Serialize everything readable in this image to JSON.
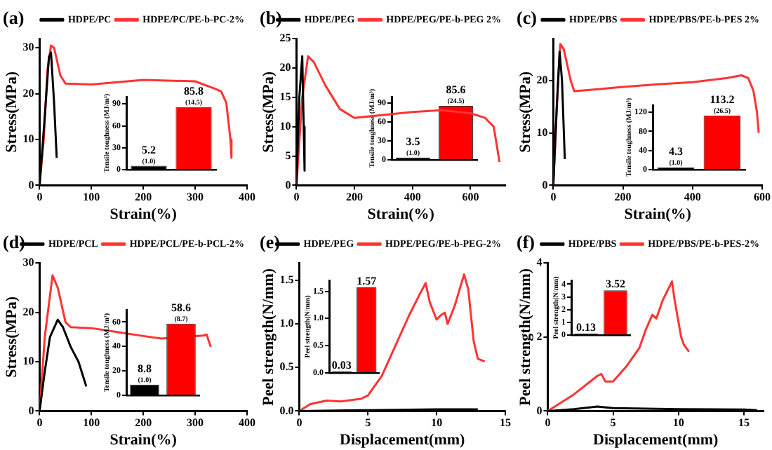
{
  "chart_data": [
    {
      "type": "line",
      "title": "(a)",
      "xlabel": "Strain(%)",
      "ylabel": "Stress(MPa)",
      "xlim": [
        0,
        400
      ],
      "xticks": [
        0,
        100,
        200,
        300,
        400
      ],
      "ylim": [
        0,
        32
      ],
      "yticks": [
        0,
        10,
        20,
        30
      ],
      "legend": "top",
      "marker": "none",
      "grid": false,
      "series": [
        {
          "name": "HDPE/PC",
          "color": "#000000",
          "x": [
            0,
            10,
            18,
            22,
            28,
            33
          ],
          "values": [
            0,
            15,
            28,
            29,
            18,
            6
          ]
        },
        {
          "name": "HDPE/PC/PE-b-PC-2%",
          "color": "#ff3333",
          "x": [
            0,
            8,
            15,
            22,
            28,
            40,
            50,
            100,
            200,
            300,
            340,
            350,
            360,
            368,
            370
          ],
          "values": [
            0,
            10,
            25,
            30.5,
            30,
            24,
            22.2,
            22,
            23,
            22.7,
            21,
            20.5,
            18,
            10,
            6
          ]
        }
      ]
    },
    {
      "type": "bar",
      "ylabel": "Tensile toughness (MJ/m³)",
      "categories": [
        null,
        null
      ],
      "values": [
        5.2,
        85.8
      ],
      "colors": [
        "#000000",
        "#ff0000"
      ],
      "value_labels": [
        "5.2\n(1.0)",
        "85.8\n(14.5)"
      ],
      "ylim": [
        0,
        100
      ],
      "yticks": [
        0,
        30,
        60,
        90
      ],
      "tick_labels": "y"
    },
    {
      "type": "line",
      "title": "(b)",
      "xlabel": "Strain(%)",
      "ylabel": "Stress(MPa)",
      "xlim": [
        0,
        720
      ],
      "xticks": [
        0,
        200,
        400,
        600
      ],
      "ylim": [
        0,
        25
      ],
      "yticks": [
        0,
        5,
        10,
        15,
        20,
        25
      ],
      "legend": "top",
      "marker": "none",
      "grid": false,
      "series": [
        {
          "name": "HDPE/PEG",
          "color": "#000000",
          "x": [
            0,
            10,
            20,
            25,
            28
          ],
          "values": [
            0,
            15,
            22,
            10,
            2.5
          ]
        },
        {
          "name": "HDPE/PEG/PE-b-PEG 2%",
          "color": "#ff3333",
          "x": [
            0,
            20,
            40,
            60,
            100,
            150,
            200,
            300,
            400,
            500,
            600,
            650,
            680,
            700
          ],
          "values": [
            0,
            15,
            22,
            21,
            17,
            13,
            11.5,
            12,
            12.5,
            12.8,
            12.3,
            11.5,
            10,
            4
          ]
        }
      ]
    },
    {
      "type": "bar",
      "ylabel": "Tensile toughness (MJ/m³)",
      "categories": [
        null,
        null
      ],
      "values": [
        3.5,
        85.6
      ],
      "colors": [
        "#000000",
        "#ff0000"
      ],
      "value_labels": [
        "3.5\n(1.0)",
        "85.6\n(24.5)"
      ],
      "ylim": [
        0,
        100
      ],
      "yticks": [
        0,
        30,
        60,
        90
      ],
      "tick_labels": "y"
    },
    {
      "type": "line",
      "title": "(c)",
      "xlabel": "Strain(%)",
      "ylabel": "Stress(MPa)",
      "xlim": [
        0,
        600
      ],
      "xticks": [
        0,
        200,
        400,
        600
      ],
      "ylim": [
        0,
        28
      ],
      "yticks": [
        0,
        10,
        20
      ],
      "legend": "top",
      "marker": "none",
      "grid": false,
      "series": [
        {
          "name": "HDPE/PBS",
          "color": "#000000",
          "x": [
            0,
            10,
            18,
            25,
            33
          ],
          "values": [
            0,
            15,
            25.5,
            20,
            5
          ]
        },
        {
          "name": "HDPE/PBS/PE-b-PES 2%",
          "color": "#ff3333",
          "x": [
            0,
            10,
            20,
            30,
            50,
            60,
            100,
            200,
            300,
            400,
            500,
            540,
            560,
            575,
            585,
            590
          ],
          "values": [
            0,
            15,
            27,
            26,
            20,
            18,
            18.2,
            18.8,
            19.3,
            19.7,
            20.5,
            21,
            20.5,
            18,
            14,
            10
          ]
        }
      ]
    },
    {
      "type": "bar",
      "ylabel": "Tensile toughness (MJ/m³)",
      "categories": [
        null,
        null
      ],
      "values": [
        4.3,
        113.2
      ],
      "colors": [
        "#000000",
        "#ff0000"
      ],
      "value_labels": [
        "4.3\n(1.0)",
        "113.2\n(26.5)"
      ],
      "ylim": [
        0,
        135
      ],
      "yticks": [
        0,
        40,
        80,
        120
      ],
      "tick_labels": "y"
    },
    {
      "type": "line",
      "title": "(d)",
      "xlabel": "Strain(%)",
      "ylabel": "Stress(MPa)",
      "xlim": [
        0,
        400
      ],
      "xticks": [
        0,
        100,
        200,
        300,
        400
      ],
      "ylim": [
        0,
        30
      ],
      "yticks": [
        0,
        10,
        20,
        30
      ],
      "legend": "top",
      "marker": "none",
      "grid": false,
      "series": [
        {
          "name": "HDPE/PCL",
          "color": "#000000",
          "x": [
            0,
            10,
            20,
            35,
            45,
            60,
            75,
            90
          ],
          "values": [
            0,
            8,
            15,
            18.5,
            17,
            13,
            10,
            5
          ]
        },
        {
          "name": "HDPE/PCL/PE-b-PCL-2%",
          "color": "#ff3333",
          "x": [
            0,
            10,
            25,
            35,
            50,
            60,
            100,
            150,
            200,
            235,
            315,
            322,
            330
          ],
          "values": [
            0,
            15,
            27.5,
            25,
            18,
            17,
            16.8,
            16,
            15.2,
            14.7,
            15.3,
            15.5,
            13
          ]
        }
      ]
    },
    {
      "type": "bar",
      "ylabel": "Tensile toughness (MJ/m³)",
      "categories": [
        null,
        null
      ],
      "values": [
        8.8,
        58.6
      ],
      "colors": [
        "#000000",
        "#ff0000"
      ],
      "value_labels": [
        "8.8\n(1.0)",
        "58.6\n(8.7)"
      ],
      "ylim": [
        0,
        70
      ],
      "yticks": [
        0,
        20,
        40,
        60
      ],
      "tick_labels": "y"
    },
    {
      "type": "line",
      "title": "(e)",
      "xlabel": "Displacement(mm)",
      "ylabel": "Peel strength(N/mm)",
      "xlim": [
        0,
        15
      ],
      "xticks": [
        0,
        5,
        10,
        15
      ],
      "ylim": [
        0,
        1.7
      ],
      "yticks": [
        {
          "value": 0,
          "label": "0.0"
        },
        {
          "value": 0.5,
          "label": "0.5"
        },
        {
          "value": 1,
          "label": "1.0"
        },
        {
          "value": 1.5,
          "label": "1.5"
        }
      ],
      "legend": "top",
      "marker": "none",
      "grid": false,
      "series": [
        {
          "name": "HDPE/PEG",
          "color": "#000000",
          "x": [
            0,
            5,
            10,
            13
          ],
          "values": [
            0,
            0.01,
            0.02,
            0.02
          ]
        },
        {
          "name": "HDPE/PEG/PE-b-PEG-2%",
          "color": "#ff3333",
          "x": [
            0,
            0.8,
            2,
            3,
            4.5,
            5,
            6,
            7,
            8,
            8.8,
            9.2,
            9.5,
            10,
            10.3,
            10.6,
            10.8,
            11.3,
            12,
            12.3,
            12.7,
            13,
            13.5
          ],
          "values": [
            0,
            0.08,
            0.12,
            0.11,
            0.14,
            0.18,
            0.4,
            0.75,
            1.1,
            1.35,
            1.47,
            1.25,
            1.05,
            1.1,
            1.13,
            1,
            1.2,
            1.57,
            1.4,
            0.8,
            0.6,
            0.57
          ]
        }
      ]
    },
    {
      "type": "bar",
      "ylabel": "Peel strength(N/mm)",
      "categories": [
        null,
        null
      ],
      "values": [
        0.03,
        1.57
      ],
      "colors": [
        "#000000",
        "#ff0000"
      ],
      "value_labels": [
        "0.03",
        "1.57"
      ],
      "ylim": [
        0,
        1.7
      ],
      "yticks": [
        {
          "value": 0,
          "label": "0.0"
        },
        {
          "value": 0.5,
          "label": "0.5"
        },
        {
          "value": 1,
          "label": "1.0"
        },
        {
          "value": 1.5,
          "label": "1.5"
        }
      ],
      "tick_labels": "y"
    },
    {
      "type": "line",
      "title": "(f)",
      "xlabel": "Displacement(mm)",
      "ylabel": "Peel strength(N/mm)",
      "xlim": [
        0,
        16.5
      ],
      "xticks": [
        0,
        5,
        10,
        15
      ],
      "ylim": [
        0,
        4
      ],
      "yticks": [
        0,
        2,
        4
      ],
      "legend": "top",
      "marker": "none",
      "grid": false,
      "series": [
        {
          "name": "HDPE/PBS",
          "color": "#000000",
          "x": [
            0,
            2,
            3.8,
            5,
            10,
            15,
            16
          ],
          "values": [
            0,
            0.05,
            0.12,
            0.08,
            0.05,
            0.04,
            0.02
          ]
        },
        {
          "name": "HDPE/PBS/PE-b-PES-2%",
          "color": "#ff3333",
          "x": [
            0,
            2,
            3.8,
            4.1,
            4.4,
            5,
            6,
            7,
            7.5,
            8,
            8.3,
            8.8,
            9.5,
            9.7,
            10,
            10.2,
            10.4,
            10.8
          ],
          "values": [
            0,
            0.45,
            0.95,
            1,
            0.8,
            0.8,
            1.2,
            1.7,
            2.2,
            2.6,
            2.5,
            3,
            3.5,
            3,
            2.4,
            2,
            1.8,
            1.6
          ]
        }
      ]
    },
    {
      "type": "bar",
      "ylabel": "Peel strength(N/mm)",
      "categories": [
        null,
        null
      ],
      "values": [
        0.13,
        3.52
      ],
      "colors": [
        "#000000",
        "#ff0000"
      ],
      "value_labels": [
        "0.13",
        "3.52"
      ],
      "ylim": [
        0,
        4.3
      ],
      "yticks": [
        0,
        1,
        2,
        3,
        4
      ],
      "tick_labels": "y"
    }
  ]
}
